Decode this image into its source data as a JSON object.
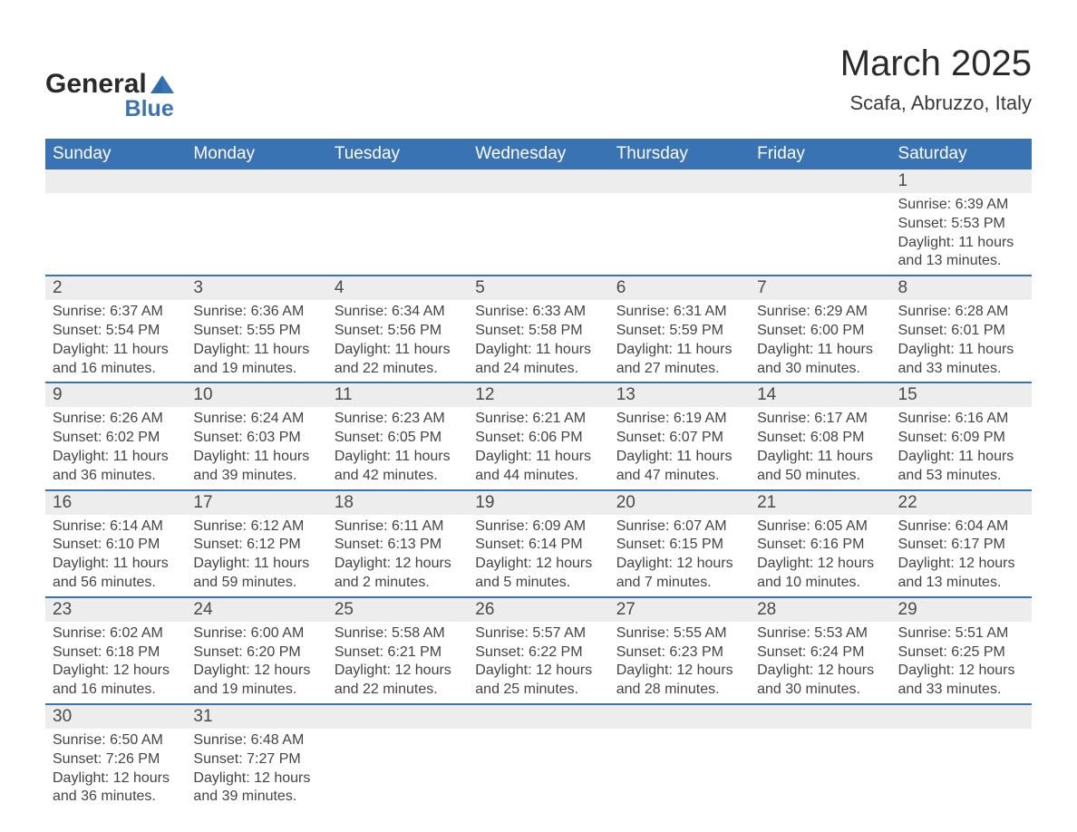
{
  "logo": {
    "text1": "General",
    "text2": "Blue",
    "shape_color": "#3a73b3",
    "text1_color": "#2a2a2a"
  },
  "title": "March 2025",
  "location": "Scafa, Abruzzo, Italy",
  "colors": {
    "header_bg": "#3a73b3",
    "header_text": "#ffffff",
    "band_bg": "#ededed",
    "border": "#3a73b3",
    "body_text": "#444444"
  },
  "day_headers": [
    "Sunday",
    "Monday",
    "Tuesday",
    "Wednesday",
    "Thursday",
    "Friday",
    "Saturday"
  ],
  "weeks": [
    [
      null,
      null,
      null,
      null,
      null,
      null,
      {
        "num": "1",
        "sunrise": "6:39 AM",
        "sunset": "5:53 PM",
        "daylight": "11 hours and 13 minutes."
      }
    ],
    [
      {
        "num": "2",
        "sunrise": "6:37 AM",
        "sunset": "5:54 PM",
        "daylight": "11 hours and 16 minutes."
      },
      {
        "num": "3",
        "sunrise": "6:36 AM",
        "sunset": "5:55 PM",
        "daylight": "11 hours and 19 minutes."
      },
      {
        "num": "4",
        "sunrise": "6:34 AM",
        "sunset": "5:56 PM",
        "daylight": "11 hours and 22 minutes."
      },
      {
        "num": "5",
        "sunrise": "6:33 AM",
        "sunset": "5:58 PM",
        "daylight": "11 hours and 24 minutes."
      },
      {
        "num": "6",
        "sunrise": "6:31 AM",
        "sunset": "5:59 PM",
        "daylight": "11 hours and 27 minutes."
      },
      {
        "num": "7",
        "sunrise": "6:29 AM",
        "sunset": "6:00 PM",
        "daylight": "11 hours and 30 minutes."
      },
      {
        "num": "8",
        "sunrise": "6:28 AM",
        "sunset": "6:01 PM",
        "daylight": "11 hours and 33 minutes."
      }
    ],
    [
      {
        "num": "9",
        "sunrise": "6:26 AM",
        "sunset": "6:02 PM",
        "daylight": "11 hours and 36 minutes."
      },
      {
        "num": "10",
        "sunrise": "6:24 AM",
        "sunset": "6:03 PM",
        "daylight": "11 hours and 39 minutes."
      },
      {
        "num": "11",
        "sunrise": "6:23 AM",
        "sunset": "6:05 PM",
        "daylight": "11 hours and 42 minutes."
      },
      {
        "num": "12",
        "sunrise": "6:21 AM",
        "sunset": "6:06 PM",
        "daylight": "11 hours and 44 minutes."
      },
      {
        "num": "13",
        "sunrise": "6:19 AM",
        "sunset": "6:07 PM",
        "daylight": "11 hours and 47 minutes."
      },
      {
        "num": "14",
        "sunrise": "6:17 AM",
        "sunset": "6:08 PM",
        "daylight": "11 hours and 50 minutes."
      },
      {
        "num": "15",
        "sunrise": "6:16 AM",
        "sunset": "6:09 PM",
        "daylight": "11 hours and 53 minutes."
      }
    ],
    [
      {
        "num": "16",
        "sunrise": "6:14 AM",
        "sunset": "6:10 PM",
        "daylight": "11 hours and 56 minutes."
      },
      {
        "num": "17",
        "sunrise": "6:12 AM",
        "sunset": "6:12 PM",
        "daylight": "11 hours and 59 minutes."
      },
      {
        "num": "18",
        "sunrise": "6:11 AM",
        "sunset": "6:13 PM",
        "daylight": "12 hours and 2 minutes."
      },
      {
        "num": "19",
        "sunrise": "6:09 AM",
        "sunset": "6:14 PM",
        "daylight": "12 hours and 5 minutes."
      },
      {
        "num": "20",
        "sunrise": "6:07 AM",
        "sunset": "6:15 PM",
        "daylight": "12 hours and 7 minutes."
      },
      {
        "num": "21",
        "sunrise": "6:05 AM",
        "sunset": "6:16 PM",
        "daylight": "12 hours and 10 minutes."
      },
      {
        "num": "22",
        "sunrise": "6:04 AM",
        "sunset": "6:17 PM",
        "daylight": "12 hours and 13 minutes."
      }
    ],
    [
      {
        "num": "23",
        "sunrise": "6:02 AM",
        "sunset": "6:18 PM",
        "daylight": "12 hours and 16 minutes."
      },
      {
        "num": "24",
        "sunrise": "6:00 AM",
        "sunset": "6:20 PM",
        "daylight": "12 hours and 19 minutes."
      },
      {
        "num": "25",
        "sunrise": "5:58 AM",
        "sunset": "6:21 PM",
        "daylight": "12 hours and 22 minutes."
      },
      {
        "num": "26",
        "sunrise": "5:57 AM",
        "sunset": "6:22 PM",
        "daylight": "12 hours and 25 minutes."
      },
      {
        "num": "27",
        "sunrise": "5:55 AM",
        "sunset": "6:23 PM",
        "daylight": "12 hours and 28 minutes."
      },
      {
        "num": "28",
        "sunrise": "5:53 AM",
        "sunset": "6:24 PM",
        "daylight": "12 hours and 30 minutes."
      },
      {
        "num": "29",
        "sunrise": "5:51 AM",
        "sunset": "6:25 PM",
        "daylight": "12 hours and 33 minutes."
      }
    ],
    [
      {
        "num": "30",
        "sunrise": "6:50 AM",
        "sunset": "7:26 PM",
        "daylight": "12 hours and 36 minutes."
      },
      {
        "num": "31",
        "sunrise": "6:48 AM",
        "sunset": "7:27 PM",
        "daylight": "12 hours and 39 minutes."
      },
      null,
      null,
      null,
      null,
      null
    ]
  ],
  "labels": {
    "sunrise": "Sunrise:",
    "sunset": "Sunset:",
    "daylight": "Daylight:"
  }
}
